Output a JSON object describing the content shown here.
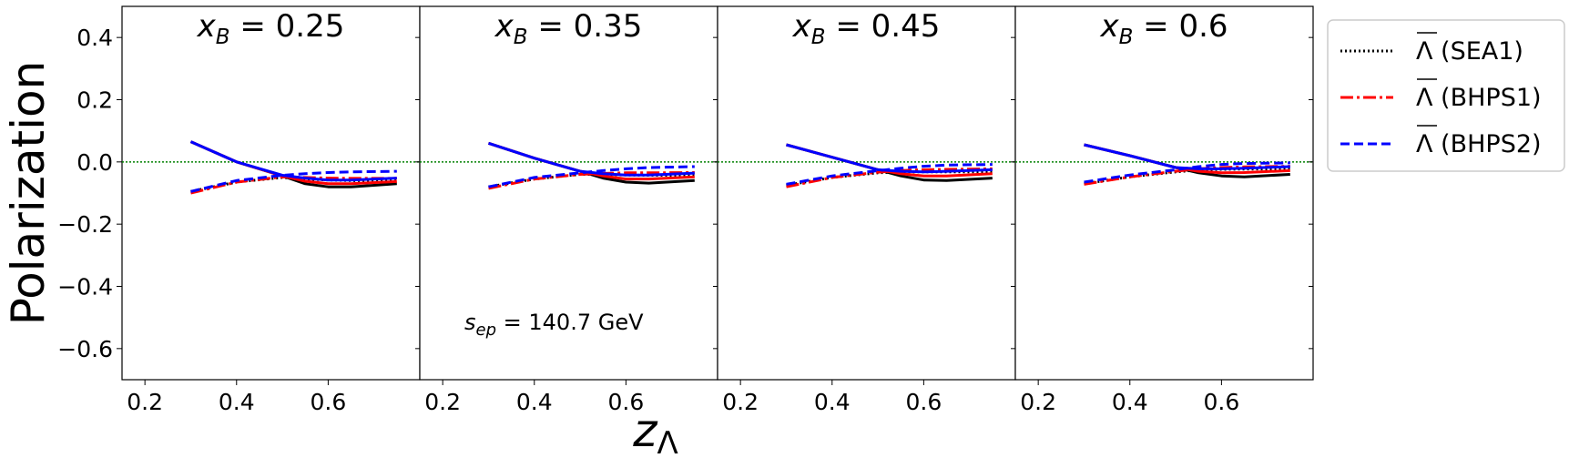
{
  "chart_data": {
    "type": "line",
    "ylabel": "Polarization",
    "xlabel": "z",
    "xlabel_sub": "Λ",
    "annotation": {
      "prefix": "s",
      "sub": "ep",
      "text": " = 140.7 GeV"
    },
    "ylim": [
      -0.7,
      0.5
    ],
    "xlim": [
      0.15,
      0.8
    ],
    "yticks": [
      0.4,
      0.2,
      0.0,
      -0.2,
      -0.4,
      -0.6
    ],
    "ytick_labels": [
      "0.4",
      "0.2",
      "0.0",
      "−0.2",
      "−0.4",
      "−0.6"
    ],
    "xticks": [
      0.2,
      0.4,
      0.6
    ],
    "xtick_labels": [
      "0.2",
      "0.4",
      "0.6"
    ],
    "legend": {
      "placement": "outside-top-right",
      "entries": [
        {
          "label": "Λ (SEA1)",
          "color": "#000000",
          "style": "dotted"
        },
        {
          "label": "Λ (BHPS1)",
          "color": "#ff0000",
          "style": "dashdot"
        },
        {
          "label": "Λ (BHPS2)",
          "color": "#0000ff",
          "style": "dashed"
        }
      ]
    },
    "colors": {
      "sea1": "#000000",
      "bhps1": "#ff0000",
      "bhps2": "#0000ff",
      "zero_line": "#008000"
    },
    "x": [
      0.3,
      0.4,
      0.5,
      0.55,
      0.6,
      0.65,
      0.75
    ],
    "panels": [
      {
        "title_var": "x",
        "title_sub": "B",
        "title_val": " = 0.25",
        "series": [
          {
            "key": "sea1_dotted",
            "color": "#000000",
            "style": "dotted",
            "width": 3,
            "values": [
              -0.095,
              -0.065,
              -0.05,
              -0.055,
              -0.058,
              -0.06,
              -0.062
            ]
          },
          {
            "key": "sea1_solid",
            "color": "#000000",
            "style": "solid",
            "width": 3,
            "values": [
              0.065,
              0.0,
              -0.045,
              -0.07,
              -0.08,
              -0.08,
              -0.07
            ]
          },
          {
            "key": "bhps1_dash",
            "color": "#ff0000",
            "style": "dashdot",
            "width": 3,
            "values": [
              -0.1,
              -0.065,
              -0.048,
              -0.05,
              -0.052,
              -0.053,
              -0.053
            ]
          },
          {
            "key": "bhps1_solid",
            "color": "#ff0000",
            "style": "solid",
            "width": 3,
            "values": [
              0.065,
              0.0,
              -0.045,
              -0.062,
              -0.07,
              -0.07,
              -0.063
            ]
          },
          {
            "key": "bhps2_dash",
            "color": "#0000ff",
            "style": "dashed",
            "width": 3,
            "values": [
              -0.095,
              -0.06,
              -0.043,
              -0.038,
              -0.034,
              -0.032,
              -0.03
            ]
          },
          {
            "key": "bhps2_solid",
            "color": "#0000ff",
            "style": "solid",
            "width": 3,
            "values": [
              0.065,
              0.0,
              -0.043,
              -0.052,
              -0.058,
              -0.058,
              -0.052
            ]
          }
        ]
      },
      {
        "title_var": "x",
        "title_sub": "B",
        "title_val": " = 0.35",
        "series": [
          {
            "key": "sea1_dotted",
            "color": "#000000",
            "style": "dotted",
            "width": 3,
            "values": [
              -0.08,
              -0.055,
              -0.04,
              -0.04,
              -0.042,
              -0.043,
              -0.043
            ]
          },
          {
            "key": "sea1_solid",
            "color": "#000000",
            "style": "solid",
            "width": 3,
            "values": [
              0.06,
              0.012,
              -0.03,
              -0.052,
              -0.065,
              -0.068,
              -0.06
            ]
          },
          {
            "key": "bhps1_dash",
            "color": "#ff0000",
            "style": "dashdot",
            "width": 3,
            "values": [
              -0.085,
              -0.055,
              -0.04,
              -0.037,
              -0.035,
              -0.035,
              -0.034
            ]
          },
          {
            "key": "bhps1_solid",
            "color": "#ff0000",
            "style": "solid",
            "width": 3,
            "values": [
              0.06,
              0.012,
              -0.03,
              -0.045,
              -0.055,
              -0.055,
              -0.048
            ]
          },
          {
            "key": "bhps2_dash",
            "color": "#0000ff",
            "style": "dashed",
            "width": 3,
            "values": [
              -0.08,
              -0.05,
              -0.035,
              -0.028,
              -0.022,
              -0.018,
              -0.015
            ]
          },
          {
            "key": "bhps2_solid",
            "color": "#0000ff",
            "style": "solid",
            "width": 3,
            "values": [
              0.06,
              0.012,
              -0.03,
              -0.038,
              -0.042,
              -0.042,
              -0.036
            ]
          }
        ]
      },
      {
        "title_var": "x",
        "title_sub": "B",
        "title_val": " = 0.45",
        "series": [
          {
            "key": "sea1_dotted",
            "color": "#000000",
            "style": "dotted",
            "width": 3,
            "values": [
              -0.075,
              -0.05,
              -0.035,
              -0.032,
              -0.032,
              -0.032,
              -0.032
            ]
          },
          {
            "key": "sea1_solid",
            "color": "#000000",
            "style": "solid",
            "width": 3,
            "values": [
              0.055,
              0.015,
              -0.025,
              -0.045,
              -0.058,
              -0.06,
              -0.052
            ]
          },
          {
            "key": "bhps1_dash",
            "color": "#ff0000",
            "style": "dashdot",
            "width": 3,
            "values": [
              -0.08,
              -0.05,
              -0.033,
              -0.028,
              -0.025,
              -0.024,
              -0.022
            ]
          },
          {
            "key": "bhps1_solid",
            "color": "#ff0000",
            "style": "solid",
            "width": 3,
            "values": [
              0.055,
              0.015,
              -0.025,
              -0.038,
              -0.045,
              -0.045,
              -0.038
            ]
          },
          {
            "key": "bhps2_dash",
            "color": "#0000ff",
            "style": "dashed",
            "width": 3,
            "values": [
              -0.072,
              -0.045,
              -0.028,
              -0.02,
              -0.014,
              -0.01,
              -0.008
            ]
          },
          {
            "key": "bhps2_solid",
            "color": "#0000ff",
            "style": "solid",
            "width": 3,
            "values": [
              0.055,
              0.015,
              -0.025,
              -0.03,
              -0.032,
              -0.03,
              -0.025
            ]
          }
        ]
      },
      {
        "title_var": "x",
        "title_sub": "B",
        "title_val": " = 0.6",
        "series": [
          {
            "key": "sea1_dotted",
            "color": "#000000",
            "style": "dotted",
            "width": 3,
            "values": [
              -0.07,
              -0.048,
              -0.032,
              -0.026,
              -0.024,
              -0.023,
              -0.022
            ]
          },
          {
            "key": "sea1_solid",
            "color": "#000000",
            "style": "solid",
            "width": 3,
            "values": [
              0.055,
              0.02,
              -0.018,
              -0.035,
              -0.045,
              -0.048,
              -0.04
            ]
          },
          {
            "key": "bhps1_dash",
            "color": "#ff0000",
            "style": "dashdot",
            "width": 3,
            "values": [
              -0.072,
              -0.048,
              -0.03,
              -0.022,
              -0.018,
              -0.016,
              -0.014
            ]
          },
          {
            "key": "bhps1_solid",
            "color": "#ff0000",
            "style": "solid",
            "width": 3,
            "values": [
              0.055,
              0.02,
              -0.018,
              -0.03,
              -0.035,
              -0.034,
              -0.028
            ]
          },
          {
            "key": "bhps2_dash",
            "color": "#0000ff",
            "style": "dashed",
            "width": 3,
            "values": [
              -0.065,
              -0.042,
              -0.025,
              -0.015,
              -0.008,
              -0.005,
              -0.003
            ]
          },
          {
            "key": "bhps2_solid",
            "color": "#0000ff",
            "style": "solid",
            "width": 3,
            "values": [
              0.055,
              0.02,
              -0.018,
              -0.022,
              -0.022,
              -0.02,
              -0.015
            ]
          }
        ]
      }
    ]
  }
}
